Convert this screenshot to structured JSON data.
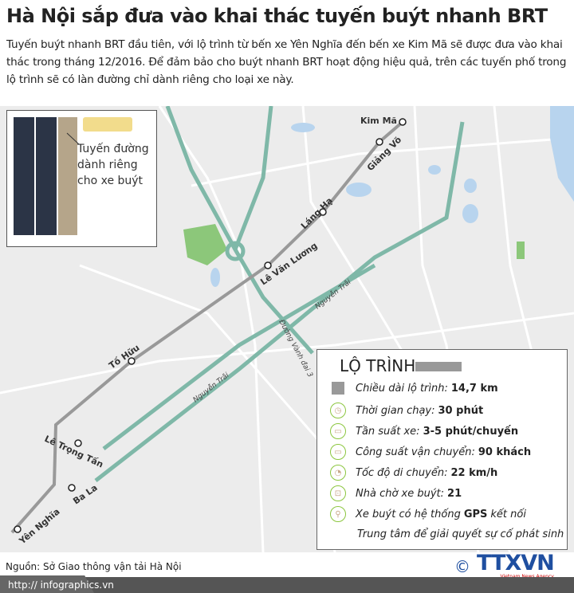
{
  "title": "Hà Nội sắp đưa vào khai thác tuyến buýt nhanh BRT",
  "intro": "Tuyến buýt nhanh BRT đầu tiên, với lộ trình từ bến xe Yên Nghĩa đến bến xe Kim Mã sẽ được đưa vào khai thác trong tháng 12/2016. Để đảm bảo cho buýt nhanh BRT hoạt động hiệu quả, trên các tuyến phố trong lộ trình sẽ có làn đường chỉ dành riêng cho loại xe này.",
  "inset": {
    "caption": "Tuyến đường dành riêng cho xe buýt"
  },
  "map": {
    "stops": [
      "Kim Mã",
      "Giảng Võ",
      "Láng Hạ",
      "Lê Văn Lương",
      "Tố Hữu",
      "Lê Trọng Tấn",
      "Ba La",
      "Yên Nghĩa"
    ],
    "roads": [
      "Nguyễn Trãi",
      "Đường Vành đai 3",
      "Nguyễn Trãi"
    ],
    "colors": {
      "route": "#999999",
      "major_road": "#7fb8a8",
      "park": "#8cc77a",
      "water": "#b8d4ee",
      "land": "#ececec"
    }
  },
  "legend": {
    "title": "LỘ TRÌNH:",
    "items": [
      {
        "icon": "route-square-icon",
        "label": "Chiều dài lộ trình:",
        "value": "14,7 km"
      },
      {
        "icon": "stopwatch-icon",
        "label": "Thời gian chạy:",
        "value": "30 phút"
      },
      {
        "icon": "bus-icon",
        "label": "Tần suất xe:",
        "value": "3-5 phút/chuyến"
      },
      {
        "icon": "bus-icon",
        "label": "Công suất vận chuyển:",
        "value": "90 khách"
      },
      {
        "icon": "speedometer-icon",
        "label": "Tốc độ di chuyển:",
        "value": "22 km/h"
      },
      {
        "icon": "bus-stop-icon",
        "label": "Nhà chờ xe buýt:",
        "value": "21"
      },
      {
        "icon": "location-pin-icon",
        "label": "Xe buýt có hệ thống",
        "bold": "GPS",
        "after": "kết nối"
      }
    ],
    "last_line": "Trung tâm để giải quyết sự cố phát sinh"
  },
  "source": "Nguồn: Sở Giao thông vận tải Hà Nội",
  "footer_url": "http:// infographics.vn",
  "logo": {
    "text": "TTXVN",
    "sub": "Vietnam News Agency"
  }
}
